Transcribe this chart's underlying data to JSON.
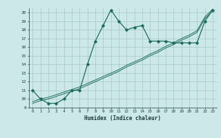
{
  "xlabel": "Humidex (Indice chaleur)",
  "bg_color": "#cce8e8",
  "grid_color": "#aacccc",
  "line_color": "#1a6b5a",
  "x_data": [
    0,
    1,
    2,
    3,
    4,
    5,
    6,
    7,
    8,
    9,
    10,
    11,
    12,
    13,
    14,
    15,
    16,
    17,
    18,
    19,
    20,
    21,
    22,
    23
  ],
  "y_curve": [
    11,
    10,
    9.5,
    9.5,
    10,
    11,
    11,
    14,
    16.7,
    18.5,
    20.3,
    19,
    18,
    18.3,
    18.5,
    16.7,
    16.7,
    16.7,
    16.5,
    16.5,
    16.5,
    16.5,
    19,
    20.3
  ],
  "y_line1": [
    9.5,
    9.8,
    10.0,
    10.3,
    10.6,
    10.9,
    11.2,
    11.6,
    12.0,
    12.4,
    12.8,
    13.2,
    13.7,
    14.1,
    14.5,
    15.0,
    15.4,
    15.9,
    16.3,
    16.8,
    17.2,
    17.7,
    19.3,
    20.2
  ],
  "y_line2": [
    9.7,
    10.0,
    10.2,
    10.5,
    10.8,
    11.1,
    11.4,
    11.8,
    12.2,
    12.6,
    13.0,
    13.4,
    13.9,
    14.3,
    14.7,
    15.2,
    15.6,
    16.1,
    16.5,
    17.0,
    17.4,
    17.9,
    19.5,
    20.4
  ],
  "ylim": [
    9,
    20.5
  ],
  "xlim": [
    -0.5,
    23.5
  ],
  "yticks": [
    9,
    10,
    11,
    12,
    13,
    14,
    15,
    16,
    17,
    18,
    19,
    20
  ],
  "xticks": [
    0,
    1,
    2,
    3,
    4,
    5,
    6,
    7,
    8,
    9,
    10,
    11,
    12,
    13,
    14,
    15,
    16,
    17,
    18,
    19,
    20,
    21,
    22,
    23
  ]
}
